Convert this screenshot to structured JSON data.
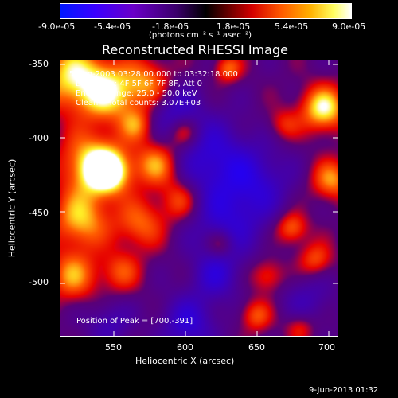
{
  "colorbar": {
    "tick_labels": [
      "-9.0e-05",
      "-5.4e-05",
      "-1.8e-05",
      "1.8e-05",
      "5.4e-05",
      "9.0e-05"
    ],
    "units": "(photons cm⁻² s⁻¹ asec⁻²)"
  },
  "title": "Reconstructed RHESSI Image",
  "annotations": {
    "time_range": "5-Sep-2003 03:28:00.000 to 03:32:18.000",
    "detectors": "Detectors: 4F 5F 6F 7F 8F, Att 0",
    "energy_range": "Energy Range: 25.0 - 50.0 keV",
    "method_counts": "Clean    Total counts: 3.07E+03",
    "peak_position": "Position of Peak = [700,-391]"
  },
  "axes": {
    "xlabel": "Heliocentric X (arcsec)",
    "ylabel": "Heliocentric Y (arcsec)",
    "x_ticks": [
      "550",
      "600",
      "650",
      "700"
    ],
    "y_ticks": [
      "-350",
      "-400",
      "-450",
      "-500"
    ],
    "xlim": [
      512,
      705
    ],
    "ylim": [
      -540,
      -345
    ]
  },
  "footer_timestamp": "9-Jun-2013 01:32",
  "colors": {
    "background": "#000000",
    "text": "#ffffff",
    "colormap_low": "#0000ff",
    "colormap_mid": "#000000",
    "colormap_high": "#ffffff"
  }
}
